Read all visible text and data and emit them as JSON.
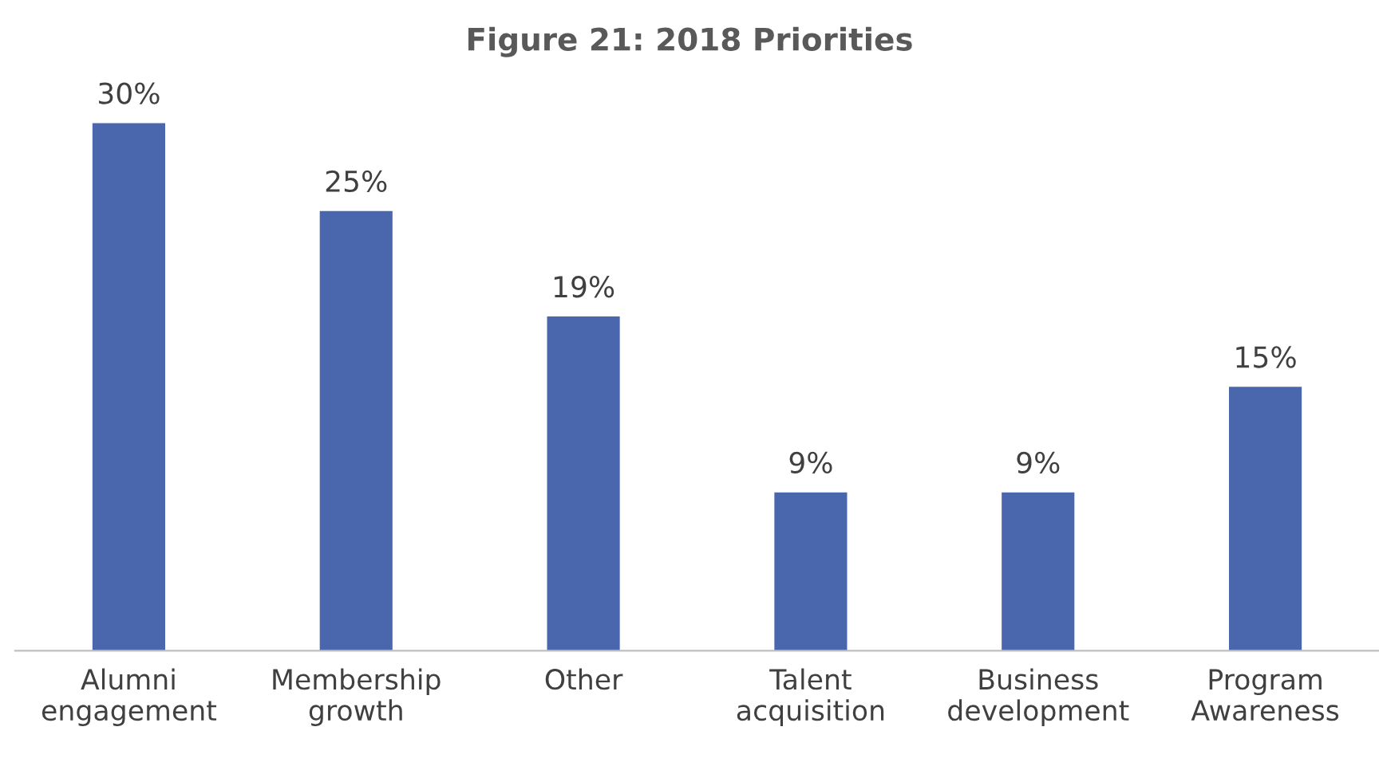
{
  "chart_data": {
    "type": "bar",
    "title": "Figure 21: 2018 Priorities",
    "categories": [
      "Alumni\nengagement",
      "Membership\ngrowth",
      "Other",
      "Talent\nacquisition",
      "Business\ndevelopment",
      "Program\nAwareness"
    ],
    "values": [
      30,
      25,
      19,
      9,
      9,
      15
    ],
    "value_labels": [
      "30%",
      "25%",
      "19%",
      "9%",
      "9%",
      "15%"
    ],
    "color": "#4a67ae"
  }
}
